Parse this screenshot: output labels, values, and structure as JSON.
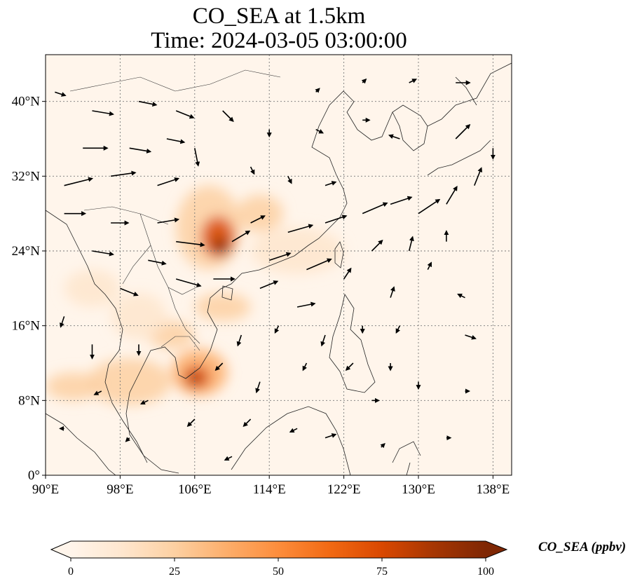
{
  "title": {
    "line1": "CO_SEA at 1.5km",
    "line2": "Time: 2024-03-05 03:00:00"
  },
  "map": {
    "extent": {
      "lon": [
        90,
        140
      ],
      "lat": [
        0,
        45
      ]
    },
    "lon_ticks": [
      {
        "value": 90,
        "label": "90°E"
      },
      {
        "value": 98,
        "label": "98°E"
      },
      {
        "value": 106,
        "label": "106°E"
      },
      {
        "value": 114,
        "label": "114°E"
      },
      {
        "value": 122,
        "label": "122°E"
      },
      {
        "value": 130,
        "label": "130°E"
      },
      {
        "value": 138,
        "label": "138°E"
      }
    ],
    "lat_ticks": [
      {
        "value": 0,
        "label": "0°"
      },
      {
        "value": 8,
        "label": "8°N"
      },
      {
        "value": 16,
        "label": "16°N"
      },
      {
        "value": 24,
        "label": "24°N"
      },
      {
        "value": 32,
        "label": "32°N"
      },
      {
        "value": 40,
        "label": "40°N"
      }
    ],
    "gridlines": true,
    "background_color": "#fff5eb",
    "plumes": [
      {
        "lon": 107.5,
        "lat": 26.5,
        "rlon": 3.5,
        "rlat": 4.5,
        "value": 30
      },
      {
        "lon": 108.5,
        "lat": 25.5,
        "rlon": 1.8,
        "rlat": 2.2,
        "value": 70
      },
      {
        "lon": 108.8,
        "lat": 24.5,
        "rlon": 0.9,
        "rlat": 0.9,
        "value": 95
      },
      {
        "lon": 113,
        "lat": 28,
        "rlon": 2.5,
        "rlat": 2,
        "value": 20
      },
      {
        "lon": 117,
        "lat": 24,
        "rlon": 5,
        "rlat": 2.5,
        "value": 15
      },
      {
        "lon": 106.5,
        "lat": 11,
        "rlon": 3,
        "rlat": 2.5,
        "value": 40
      },
      {
        "lon": 106.2,
        "lat": 10.5,
        "rlon": 1.4,
        "rlat": 1.2,
        "value": 80
      },
      {
        "lon": 106,
        "lat": 10.3,
        "rlon": 0.6,
        "rlat": 0.5,
        "value": 100
      },
      {
        "lon": 103.5,
        "lat": 15,
        "rlon": 2.5,
        "rlat": 1.5,
        "value": 30
      },
      {
        "lon": 99,
        "lat": 10,
        "rlon": 4.5,
        "rlat": 2.5,
        "value": 25
      },
      {
        "lon": 93,
        "lat": 9.5,
        "rlon": 3,
        "rlat": 1.5,
        "value": 30
      },
      {
        "lon": 100,
        "lat": 17,
        "rlon": 3,
        "rlat": 2.5,
        "value": 15
      },
      {
        "lon": 109,
        "lat": 18,
        "rlon": 3,
        "rlat": 1.5,
        "value": 25
      },
      {
        "lon": 95,
        "lat": 20,
        "rlon": 3,
        "rlat": 2,
        "value": 12
      }
    ],
    "wind_vectors": [
      {
        "lon": 91,
        "lat": 41,
        "u": 3,
        "v": -1
      },
      {
        "lon": 95,
        "lat": 39,
        "u": 6,
        "v": -1
      },
      {
        "lon": 100,
        "lat": 40,
        "u": 5,
        "v": -1
      },
      {
        "lon": 104,
        "lat": 39,
        "u": 5,
        "v": -2
      },
      {
        "lon": 109,
        "lat": 39,
        "u": 3,
        "v": -3
      },
      {
        "lon": 94,
        "lat": 35,
        "u": 7,
        "v": 0
      },
      {
        "lon": 99,
        "lat": 35,
        "u": 6,
        "v": -1
      },
      {
        "lon": 103,
        "lat": 36,
        "u": 5,
        "v": -1
      },
      {
        "lon": 106,
        "lat": 35,
        "u": 1,
        "v": -5
      },
      {
        "lon": 92,
        "lat": 31,
        "u": 8,
        "v": 2
      },
      {
        "lon": 97,
        "lat": 32,
        "u": 7,
        "v": 1
      },
      {
        "lon": 102,
        "lat": 31,
        "u": 6,
        "v": 2
      },
      {
        "lon": 92,
        "lat": 28,
        "u": 6,
        "v": 0
      },
      {
        "lon": 97,
        "lat": 27,
        "u": 5,
        "v": 0
      },
      {
        "lon": 102,
        "lat": 27,
        "u": 6,
        "v": 1
      },
      {
        "lon": 104,
        "lat": 25,
        "u": 8,
        "v": -1
      },
      {
        "lon": 95,
        "lat": 24,
        "u": 6,
        "v": -1
      },
      {
        "lon": 101,
        "lat": 23,
        "u": 5,
        "v": -1
      },
      {
        "lon": 104,
        "lat": 21,
        "u": 7,
        "v": -2
      },
      {
        "lon": 98,
        "lat": 20,
        "u": 5,
        "v": -2
      },
      {
        "lon": 108,
        "lat": 21,
        "u": 6,
        "v": 0
      },
      {
        "lon": 110,
        "lat": 25,
        "u": 5,
        "v": 3
      },
      {
        "lon": 112,
        "lat": 27,
        "u": 4,
        "v": 2
      },
      {
        "lon": 114,
        "lat": 23,
        "u": 6,
        "v": 2
      },
      {
        "lon": 116,
        "lat": 26,
        "u": 7,
        "v": 2
      },
      {
        "lon": 118,
        "lat": 22,
        "u": 7,
        "v": 3
      },
      {
        "lon": 113,
        "lat": 20,
        "u": 5,
        "v": 2
      },
      {
        "lon": 117,
        "lat": 18,
        "u": 5,
        "v": 1
      },
      {
        "lon": 120,
        "lat": 27,
        "u": 6,
        "v": 2
      },
      {
        "lon": 124,
        "lat": 28,
        "u": 7,
        "v": 3
      },
      {
        "lon": 127,
        "lat": 29,
        "u": 6,
        "v": 2
      },
      {
        "lon": 130,
        "lat": 28,
        "u": 6,
        "v": 4
      },
      {
        "lon": 133,
        "lat": 29,
        "u": 3,
        "v": 5
      },
      {
        "lon": 136,
        "lat": 31,
        "u": 2,
        "v": 5
      },
      {
        "lon": 125,
        "lat": 24,
        "u": 3,
        "v": 3
      },
      {
        "lon": 129,
        "lat": 24,
        "u": 1,
        "v": 4
      },
      {
        "lon": 133,
        "lat": 25,
        "u": 0,
        "v": 3
      },
      {
        "lon": 122,
        "lat": 21,
        "u": 2,
        "v": 3
      },
      {
        "lon": 127,
        "lat": 19,
        "u": 1,
        "v": 3
      },
      {
        "lon": 131,
        "lat": 22,
        "u": 1,
        "v": 2
      },
      {
        "lon": 135,
        "lat": 19,
        "u": -2,
        "v": 1
      },
      {
        "lon": 124,
        "lat": 16,
        "u": 0,
        "v": -2
      },
      {
        "lon": 128,
        "lat": 16,
        "u": -1,
        "v": -2
      },
      {
        "lon": 120,
        "lat": 15,
        "u": -1,
        "v": -3
      },
      {
        "lon": 115,
        "lat": 16,
        "u": -1,
        "v": -2
      },
      {
        "lon": 111,
        "lat": 15,
        "u": -1,
        "v": -3
      },
      {
        "lon": 118,
        "lat": 12,
        "u": -1,
        "v": -2
      },
      {
        "lon": 123,
        "lat": 12,
        "u": -2,
        "v": -2
      },
      {
        "lon": 127,
        "lat": 12,
        "u": 0,
        "v": -2
      },
      {
        "lon": 113,
        "lat": 10,
        "u": -1,
        "v": -3
      },
      {
        "lon": 109,
        "lat": 12,
        "u": -2,
        "v": -2
      },
      {
        "lon": 100,
        "lat": 14,
        "u": 0,
        "v": -3
      },
      {
        "lon": 95,
        "lat": 14,
        "u": 0,
        "v": -4
      },
      {
        "lon": 92,
        "lat": 17,
        "u": -1,
        "v": -3
      },
      {
        "lon": 96,
        "lat": 9,
        "u": -2,
        "v": -1
      },
      {
        "lon": 101,
        "lat": 8,
        "u": -2,
        "v": -1
      },
      {
        "lon": 106,
        "lat": 6,
        "u": -2,
        "v": -2
      },
      {
        "lon": 112,
        "lat": 6,
        "u": -2,
        "v": -2
      },
      {
        "lon": 117,
        "lat": 5,
        "u": -2,
        "v": -1
      },
      {
        "lon": 120,
        "lat": 4,
        "u": 3,
        "v": 1
      },
      {
        "lon": 125,
        "lat": 8,
        "u": 2,
        "v": 0
      },
      {
        "lon": 130,
        "lat": 10,
        "u": 0,
        "v": -2
      },
      {
        "lon": 135,
        "lat": 15,
        "u": 3,
        "v": -1
      },
      {
        "lon": 134,
        "lat": 36,
        "u": 4,
        "v": 4
      },
      {
        "lon": 138,
        "lat": 35,
        "u": 0,
        "v": -3
      },
      {
        "lon": 128,
        "lat": 36,
        "u": -3,
        "v": 1
      },
      {
        "lon": 124,
        "lat": 38,
        "u": 2,
        "v": 0
      },
      {
        "lon": 119,
        "lat": 37,
        "u": 2,
        "v": -1
      },
      {
        "lon": 114,
        "lat": 37,
        "u": 0,
        "v": -2
      },
      {
        "lon": 119,
        "lat": 41,
        "u": 1,
        "v": 1
      },
      {
        "lon": 124,
        "lat": 42,
        "u": 1,
        "v": 1
      },
      {
        "lon": 129,
        "lat": 42,
        "u": 2,
        "v": 1
      },
      {
        "lon": 134,
        "lat": 42,
        "u": 4,
        "v": 0
      },
      {
        "lon": 112,
        "lat": 33,
        "u": 1,
        "v": -2
      },
      {
        "lon": 116,
        "lat": 32,
        "u": 1,
        "v": -2
      },
      {
        "lon": 120,
        "lat": 31,
        "u": 3,
        "v": 1
      },
      {
        "lon": 99,
        "lat": 4,
        "u": -1,
        "v": -1
      },
      {
        "lon": 92,
        "lat": 5,
        "u": -1,
        "v": 0
      },
      {
        "lon": 110,
        "lat": 2,
        "u": -2,
        "v": -1
      },
      {
        "lon": 126,
        "lat": 3,
        "u": 1,
        "v": 1
      },
      {
        "lon": 133,
        "lat": 4,
        "u": 0,
        "v": 0
      },
      {
        "lon": 135,
        "lat": 9,
        "u": 1,
        "v": 0
      }
    ]
  },
  "colorbar": {
    "title": "CO_SEA (ppbv)",
    "min": 0,
    "max": 100,
    "extend": "both",
    "ticks": [
      {
        "value": 0,
        "label": "0"
      },
      {
        "value": 25,
        "label": "25"
      },
      {
        "value": 50,
        "label": "50"
      },
      {
        "value": 75,
        "label": "75"
      },
      {
        "value": 100,
        "label": "100"
      }
    ],
    "colors": [
      "#fff5eb",
      "#fee6ce",
      "#fdd0a2",
      "#fdae6b",
      "#fd8d3c",
      "#f16913",
      "#d94801",
      "#a63603",
      "#7f2704"
    ]
  }
}
